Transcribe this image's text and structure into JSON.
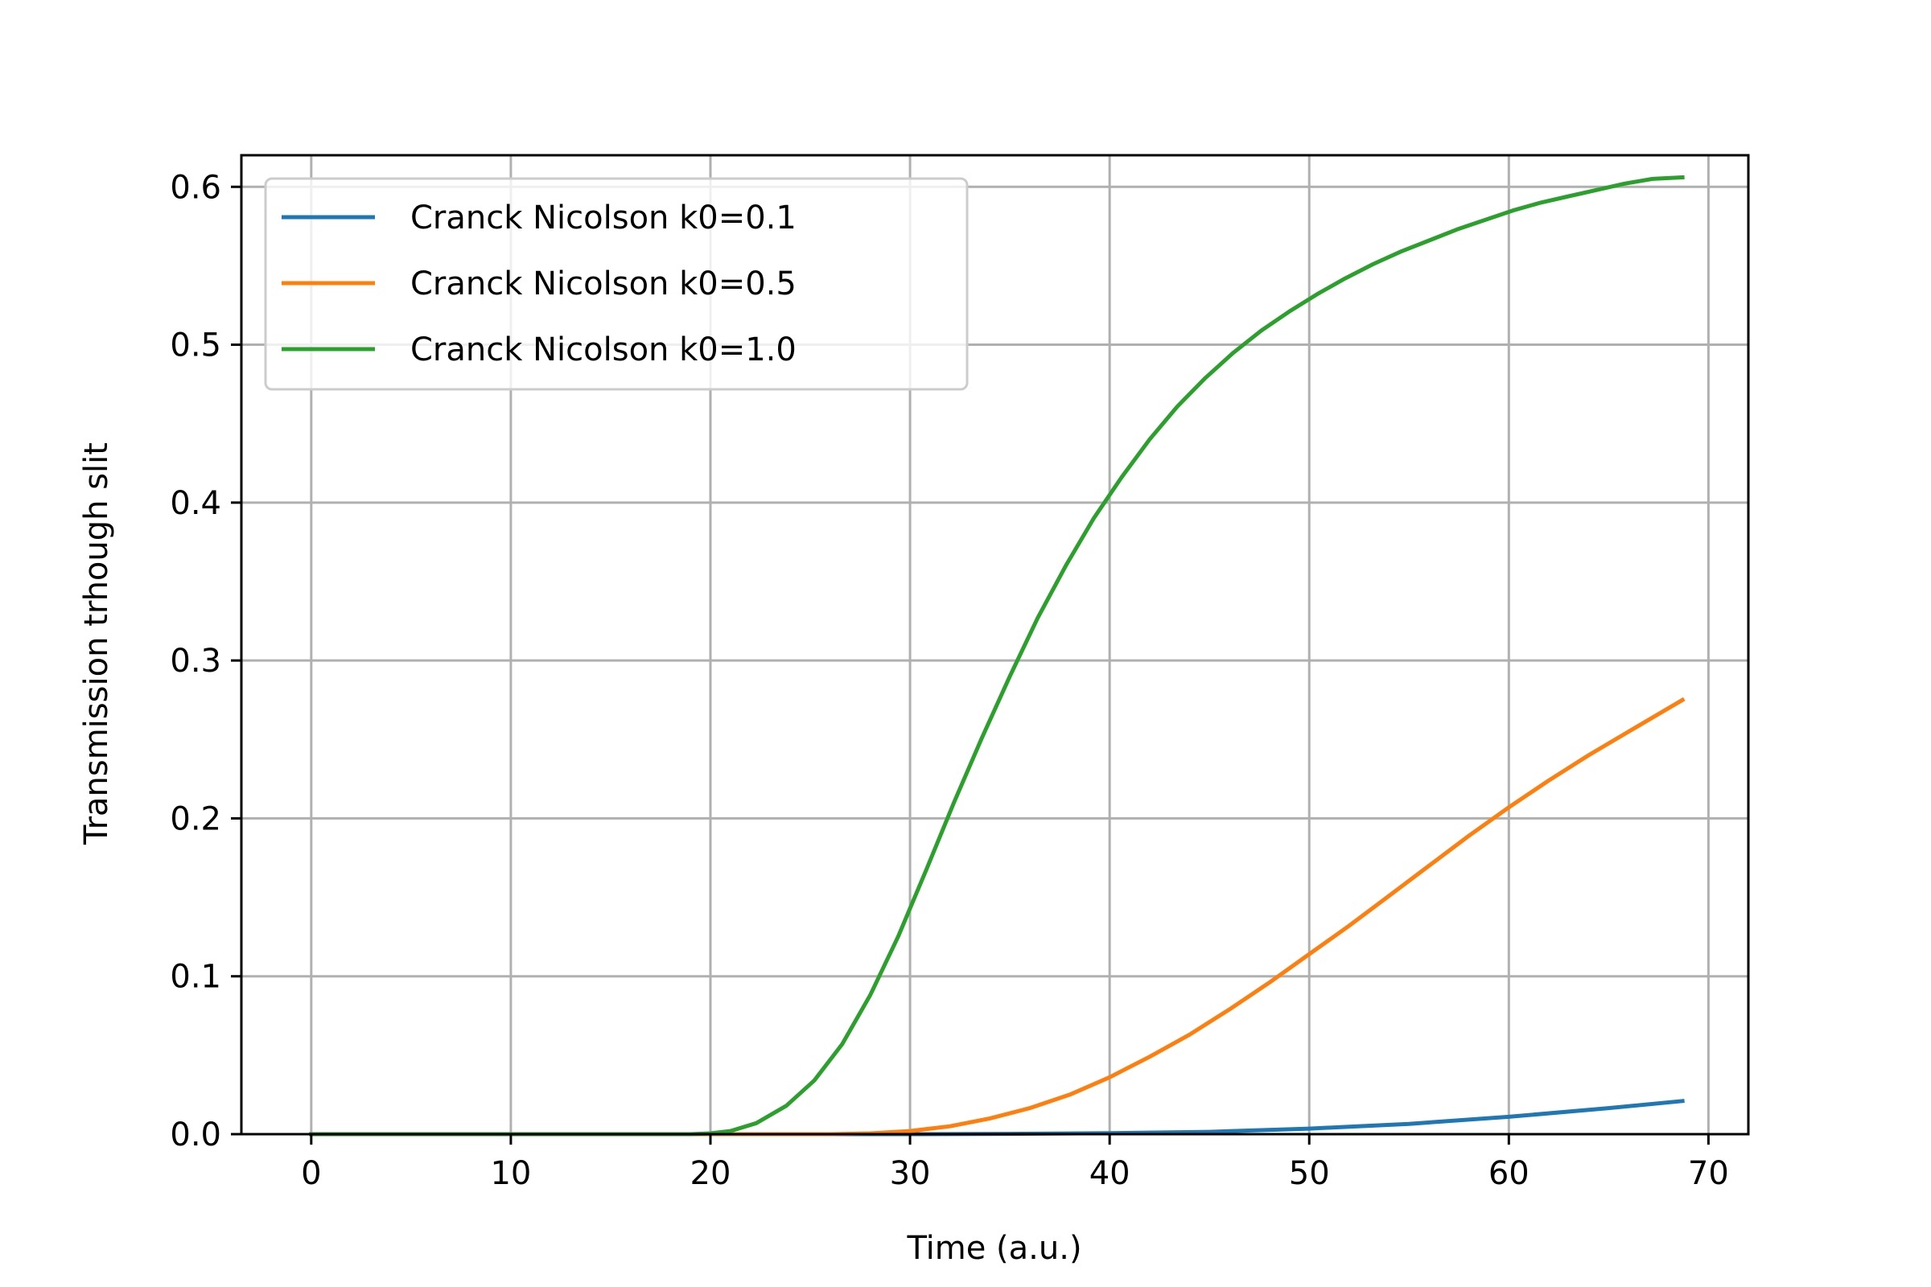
{
  "chart_data": {
    "type": "line",
    "title": "",
    "xlabel": "Time (a.u.)",
    "ylabel": "Transmission trhough slit",
    "xlim": [
      -3.5,
      72
    ],
    "ylim": [
      0,
      0.62
    ],
    "xticks": [
      0,
      10,
      20,
      30,
      40,
      50,
      60,
      70
    ],
    "yticks": [
      0.0,
      0.1,
      0.2,
      0.3,
      0.4,
      0.5,
      0.6
    ],
    "xtick_labels": [
      "0",
      "10",
      "20",
      "30",
      "40",
      "50",
      "60",
      "70"
    ],
    "ytick_labels": [
      "0.0",
      "0.1",
      "0.2",
      "0.3",
      "0.4",
      "0.5",
      "0.6"
    ],
    "grid": true,
    "legend_position": "top-left",
    "series": [
      {
        "name": "Cranck Nicolson k0=0.1",
        "color": "#1f77b4",
        "x": [
          0,
          10,
          20,
          30,
          35,
          40,
          45,
          50,
          55,
          60,
          65,
          68.7
        ],
        "y": [
          0,
          0,
          0,
          0,
          0.0002,
          0.0006,
          0.0015,
          0.0035,
          0.0065,
          0.011,
          0.0165,
          0.021
        ]
      },
      {
        "name": "Cranck Nicolson k0=0.5",
        "color": "#ff7f0e",
        "x": [
          0,
          10,
          20,
          24,
          26,
          28,
          30,
          32,
          34,
          36,
          38,
          40,
          42,
          44,
          46,
          48,
          50,
          52,
          54,
          56,
          58,
          60,
          62,
          64,
          66,
          68.7
        ],
        "y": [
          0,
          0,
          0,
          0,
          0,
          0.0005,
          0.002,
          0.005,
          0.01,
          0.0165,
          0.025,
          0.036,
          0.049,
          0.063,
          0.079,
          0.096,
          0.114,
          0.132,
          0.151,
          0.17,
          0.189,
          0.207,
          0.224,
          0.24,
          0.255,
          0.275
        ]
      },
      {
        "name": "Cranck Nicolson k0=1.0",
        "color": "#2ca02c",
        "x": [
          0,
          10,
          19,
          20,
          21,
          22.3,
          23.8,
          25.2,
          26.6,
          28,
          29.4,
          30.8,
          32.2,
          33.6,
          35,
          36.4,
          37.8,
          39.2,
          40.6,
          42,
          43.4,
          44.8,
          46.2,
          47.6,
          49,
          50.4,
          51.8,
          53.2,
          54.6,
          56,
          57.4,
          58.8,
          60.2,
          61.6,
          63,
          64.4,
          65.8,
          67.2,
          68.7
        ],
        "y": [
          0,
          0,
          0,
          0.0005,
          0.002,
          0.007,
          0.018,
          0.034,
          0.057,
          0.088,
          0.125,
          0.167,
          0.21,
          0.251,
          0.29,
          0.327,
          0.36,
          0.39,
          0.416,
          0.44,
          0.461,
          0.479,
          0.495,
          0.509,
          0.521,
          0.532,
          0.542,
          0.551,
          0.559,
          0.566,
          0.573,
          0.579,
          0.585,
          0.59,
          0.594,
          0.598,
          0.602,
          0.605,
          0.606
        ]
      }
    ]
  }
}
